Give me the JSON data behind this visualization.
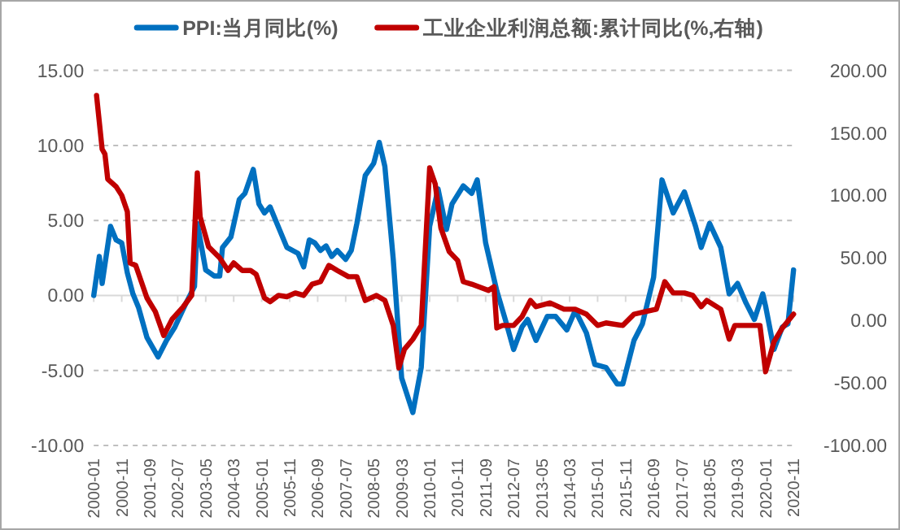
{
  "chart_data": {
    "type": "line",
    "xlim": [
      "2000-01",
      "2020-11"
    ],
    "xticks": [
      "2000-01",
      "2000-11",
      "2001-09",
      "2002-07",
      "2003-05",
      "2004-03",
      "2005-01",
      "2005-11",
      "2006-09",
      "2007-07",
      "2008-05",
      "2009-03",
      "2010-01",
      "2010-11",
      "2011-09",
      "2012-07",
      "2013-05",
      "2014-03",
      "2015-01",
      "2015-11",
      "2016-09",
      "2017-07",
      "2018-05",
      "2019-03",
      "2020-01",
      "2020-11"
    ],
    "ylim": [
      -10,
      15
    ],
    "yticks": [
      {
        "value": -10,
        "label": "-10.00"
      },
      {
        "value": -5,
        "label": "-5.00"
      },
      {
        "value": 0,
        "label": "0.00"
      },
      {
        "value": 5,
        "label": "5.00"
      },
      {
        "value": 10,
        "label": "10.00"
      },
      {
        "value": 15,
        "label": "15.00"
      }
    ],
    "y2lim": [
      -100,
      200
    ],
    "y2ticks": [
      {
        "value": -100,
        "label": "-100.00"
      },
      {
        "value": -50,
        "label": "-50.00"
      },
      {
        "value": 0,
        "label": "0.00"
      },
      {
        "value": 50,
        "label": "50.00"
      },
      {
        "value": 100,
        "label": "100.00"
      },
      {
        "value": 150,
        "label": "150.00"
      },
      {
        "value": 200,
        "label": "200.00"
      }
    ],
    "grid": "y",
    "legend": "top",
    "series": [
      {
        "name": "PPI:当月同比(%)",
        "color": "#0070c0",
        "x": [
          "2000-01",
          "2000-02",
          "2000-03",
          "2000-04",
          "2000-07",
          "2000-09",
          "2000-11",
          "2001-01",
          "2001-03",
          "2001-05",
          "2001-08",
          "2001-12",
          "2002-03",
          "2002-06",
          "2002-10",
          "2003-01",
          "2003-02",
          "2003-05",
          "2003-08",
          "2003-10",
          "2003-11",
          "2004-02",
          "2004-05",
          "2004-07",
          "2004-10",
          "2004-12",
          "2005-02",
          "2005-04",
          "2005-06",
          "2005-10",
          "2006-02",
          "2006-04",
          "2006-06",
          "2006-08",
          "2006-10",
          "2006-12",
          "2007-02",
          "2007-04",
          "2007-07",
          "2007-09",
          "2007-11",
          "2008-02",
          "2008-05",
          "2008-07",
          "2008-09",
          "2008-12",
          "2009-03",
          "2009-07",
          "2009-10",
          "2010-01",
          "2010-04",
          "2010-07",
          "2010-09",
          "2011-01",
          "2011-04",
          "2011-06",
          "2011-09",
          "2012-01",
          "2012-04",
          "2012-07",
          "2012-10",
          "2012-12",
          "2013-03",
          "2013-07",
          "2013-10",
          "2014-02",
          "2014-05",
          "2014-09",
          "2014-12",
          "2015-04",
          "2015-08",
          "2015-10",
          "2016-02",
          "2016-05",
          "2016-09",
          "2016-12",
          "2017-04",
          "2017-08",
          "2017-12",
          "2018-02",
          "2018-05",
          "2018-09",
          "2018-12",
          "2019-03",
          "2019-06",
          "2019-09",
          "2019-12",
          "2020-01",
          "2020-04",
          "2020-07",
          "2020-09",
          "2020-11"
        ],
        "values": [
          0.0,
          1.3,
          2.6,
          0.8,
          4.6,
          3.7,
          3.5,
          1.5,
          0.1,
          -0.8,
          -2.8,
          -4.1,
          -3.0,
          -2.1,
          -0.5,
          0.6,
          4.8,
          1.7,
          1.3,
          1.3,
          3.2,
          3.9,
          6.4,
          6.8,
          8.4,
          6.1,
          5.5,
          5.9,
          5.0,
          3.2,
          2.8,
          1.9,
          3.7,
          3.5,
          3.0,
          3.3,
          2.6,
          3.0,
          2.4,
          3.0,
          4.8,
          8.0,
          8.8,
          10.2,
          8.6,
          2.4,
          -5.5,
          -7.8,
          -4.8,
          4.6,
          7.1,
          4.4,
          6.1,
          7.3,
          6.8,
          7.7,
          3.5,
          0.3,
          -1.6,
          -3.6,
          -2.1,
          -1.6,
          -3.0,
          -1.4,
          -1.4,
          -2.3,
          -1.0,
          -2.5,
          -4.6,
          -4.8,
          -5.9,
          -5.9,
          -3.0,
          -1.9,
          1.2,
          7.7,
          5.5,
          6.9,
          4.6,
          3.2,
          4.8,
          3.2,
          0.1,
          0.8,
          -0.5,
          -1.6,
          0.1,
          -0.7,
          -3.6,
          -2.1,
          -1.9,
          1.7
        ]
      },
      {
        "name": "工业企业利润总额:累计同比(%,右轴)",
        "color": "#c00000",
        "axis": "y2",
        "x": [
          "2000-02",
          "2000-04",
          "2000-05",
          "2000-06",
          "2000-09",
          "2000-11",
          "2001-01",
          "2001-02",
          "2001-04",
          "2001-06",
          "2001-08",
          "2001-11",
          "2002-02",
          "2002-05",
          "2002-09",
          "2002-12",
          "2003-02",
          "2003-03",
          "2003-06",
          "2003-10",
          "2004-01",
          "2004-03",
          "2004-06",
          "2004-09",
          "2004-11",
          "2005-02",
          "2005-04",
          "2005-07",
          "2005-10",
          "2006-01",
          "2006-04",
          "2006-07",
          "2006-10",
          "2007-01",
          "2007-04",
          "2007-08",
          "2007-11",
          "2008-02",
          "2008-06",
          "2008-09",
          "2008-12",
          "2009-02",
          "2009-04",
          "2009-07",
          "2009-10",
          "2010-01",
          "2010-03",
          "2010-05",
          "2010-08",
          "2010-11",
          "2011-01",
          "2011-04",
          "2011-10",
          "2011-12",
          "2012-01",
          "2012-03",
          "2012-07",
          "2012-10",
          "2013-01",
          "2013-03",
          "2013-08",
          "2014-01",
          "2014-05",
          "2014-09",
          "2015-01",
          "2015-04",
          "2015-10",
          "2016-02",
          "2016-06",
          "2016-10",
          "2017-01",
          "2017-04",
          "2017-08",
          "2017-11",
          "2018-02",
          "2018-04",
          "2018-09",
          "2018-12",
          "2019-02",
          "2019-07",
          "2019-11",
          "2020-01",
          "2020-04",
          "2020-07",
          "2020-11"
        ],
        "values": [
          180,
          137,
          133,
          113,
          107,
          100,
          87,
          46,
          44,
          31,
          18,
          7,
          -12,
          1,
          11,
          20,
          118,
          83,
          59,
          50,
          40,
          46,
          40,
          40,
          37,
          18,
          15,
          20,
          19,
          22,
          20,
          29,
          31,
          44,
          40,
          35,
          35,
          16,
          20,
          16,
          -4,
          -38,
          -23,
          -15,
          -4,
          122,
          109,
          74,
          55,
          48,
          31,
          29,
          24,
          27,
          -6,
          -4,
          -4,
          3,
          16,
          11,
          14,
          9,
          9,
          5,
          -4,
          -2,
          -4,
          5,
          7,
          9,
          31,
          22,
          22,
          20,
          11,
          16,
          9,
          -15,
          -4,
          -4,
          -4,
          -41,
          -17,
          -6,
          5
        ]
      }
    ]
  }
}
